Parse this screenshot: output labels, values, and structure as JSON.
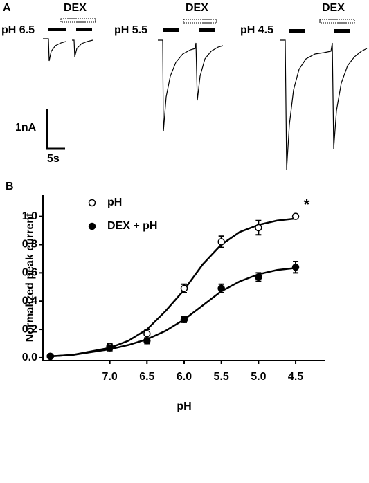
{
  "panel_a": {
    "label": "A",
    "traces": [
      {
        "ph": "pH 6.5",
        "dex": "DEX"
      },
      {
        "ph": "pH 5.5",
        "dex": "DEX"
      },
      {
        "ph": "pH 4.5",
        "dex": "DEX"
      }
    ],
    "scale_current": "1nA",
    "scale_time": "5s"
  },
  "chart_data": {
    "type": "scatter",
    "panel_label": "B",
    "x_label": "pH",
    "y_label": "Normalized peak current",
    "annotation": "*",
    "x": [
      7.8,
      7.0,
      6.5,
      6.0,
      5.5,
      5.0,
      4.5
    ],
    "series": [
      {
        "name": "pH",
        "color": "#000000",
        "marker": "open",
        "values": [
          0.01,
          0.08,
          0.17,
          0.49,
          0.82,
          0.92,
          1.0
        ],
        "errors": [
          0.01,
          0.02,
          0.03,
          0.03,
          0.04,
          0.05,
          0.0
        ],
        "fit": [
          0.01,
          0.02,
          0.07,
          0.12,
          0.2,
          0.33,
          0.48,
          0.66,
          0.8,
          0.89,
          0.94,
          0.97,
          0.985
        ]
      },
      {
        "name": "DEX + pH",
        "color": "#000000",
        "marker": "filled",
        "values": [
          0.01,
          0.07,
          0.12,
          0.27,
          0.49,
          0.57,
          0.64
        ],
        "errors": [
          0.01,
          0.02,
          0.02,
          0.02,
          0.03,
          0.03,
          0.04
        ],
        "fit": [
          0.01,
          0.02,
          0.06,
          0.09,
          0.13,
          0.19,
          0.27,
          0.37,
          0.47,
          0.54,
          0.59,
          0.62,
          0.635
        ]
      }
    ],
    "fit_x": [
      7.8,
      7.5,
      7.0,
      6.75,
      6.5,
      6.25,
      6.0,
      5.75,
      5.5,
      5.25,
      5.0,
      4.75,
      4.5
    ],
    "xlim": [
      7.9,
      4.1
    ],
    "ylim": [
      -0.02,
      1.15
    ],
    "xticks": [
      {
        "value": 7.0,
        "label": "7.0"
      },
      {
        "value": 6.5,
        "label": "6.5"
      },
      {
        "value": 6.0,
        "label": "6.0"
      },
      {
        "value": 5.5,
        "label": "5.5"
      },
      {
        "value": 5.0,
        "label": "5.0"
      },
      {
        "value": 4.5,
        "label": "4.5"
      }
    ],
    "yticks": [
      {
        "value": 0,
        "label": "0.0"
      },
      {
        "value": 0.2,
        "label": "0.2"
      },
      {
        "value": 0.4,
        "label": "0.4"
      },
      {
        "value": 0.6,
        "label": "0.6"
      },
      {
        "value": 0.8,
        "label": "0.8"
      },
      {
        "value": 1.0,
        "label": "1.0"
      }
    ]
  }
}
